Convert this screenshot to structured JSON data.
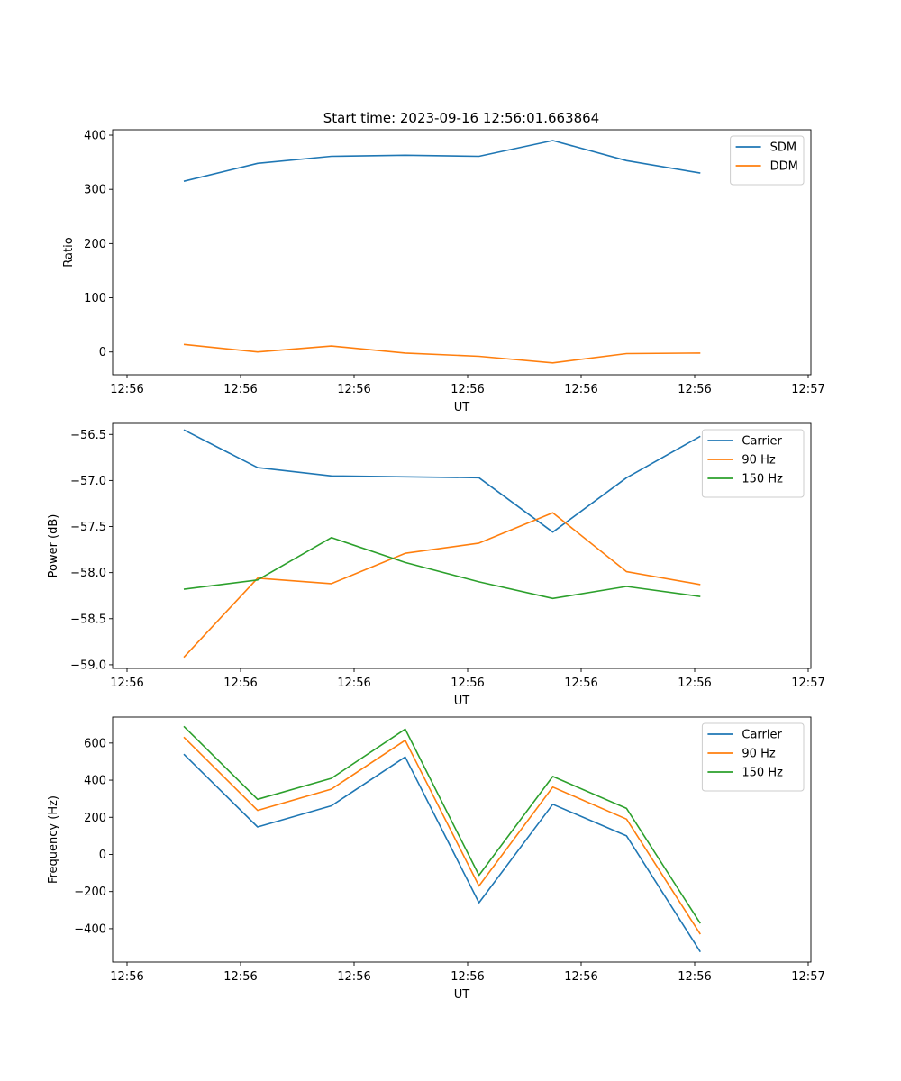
{
  "figure": {
    "title": "Start time: 2023-09-16 12:56:01.663864"
  },
  "chart_data": [
    {
      "type": "line",
      "xlabel": "UT",
      "ylabel": "Ratio",
      "x_tick_labels": [
        "12:56",
        "12:56",
        "12:56",
        "12:56",
        "12:56",
        "12:56",
        "12:57"
      ],
      "xlim": [
        0,
        12
      ],
      "x": [
        1,
        2.3,
        3.6,
        4.9,
        6.2,
        7.5,
        8.8,
        10.1
      ],
      "ylim": [
        -42,
        410
      ],
      "y_ticks": [
        0,
        100,
        200,
        300,
        400
      ],
      "y_tick_labels": [
        "0",
        "100",
        "200",
        "300",
        "400"
      ],
      "legend": "top-right",
      "grid": false,
      "series": [
        {
          "name": "SDM",
          "color": "#1f77b4",
          "values": [
            315,
            348,
            361,
            363,
            361,
            390,
            353,
            330
          ]
        },
        {
          "name": "DDM",
          "color": "#ff7f0e",
          "values": [
            14,
            0,
            11,
            -2,
            -8,
            -20,
            -3,
            -2
          ]
        }
      ]
    },
    {
      "type": "line",
      "xlabel": "UT",
      "ylabel": "Power (dB)",
      "x_tick_labels": [
        "12:56",
        "12:56",
        "12:56",
        "12:56",
        "12:56",
        "12:56",
        "12:57"
      ],
      "xlim": [
        0,
        12
      ],
      "x": [
        1,
        2.3,
        3.6,
        4.9,
        6.2,
        7.5,
        8.8,
        10.1
      ],
      "ylim": [
        -59.04,
        -56.38
      ],
      "y_ticks": [
        -59.0,
        -58.5,
        -58.0,
        -57.5,
        -57.0,
        -56.5
      ],
      "y_tick_labels": [
        "−59.0",
        "−58.5",
        "−58.0",
        "−57.5",
        "−57.0",
        "−56.5"
      ],
      "legend": "top-right",
      "grid": false,
      "series": [
        {
          "name": "Carrier",
          "color": "#1f77b4",
          "values": [
            -56.45,
            -56.86,
            -56.95,
            -56.96,
            -56.97,
            -57.56,
            -56.97,
            -56.52
          ]
        },
        {
          "name": "90 Hz",
          "color": "#ff7f0e",
          "values": [
            -58.92,
            -58.06,
            -58.12,
            -57.79,
            -57.68,
            -57.35,
            -57.99,
            -58.13
          ]
        },
        {
          "name": "150 Hz",
          "color": "#2ca02c",
          "values": [
            -58.18,
            -58.08,
            -57.62,
            -57.89,
            -58.1,
            -58.28,
            -58.15,
            -58.26
          ]
        }
      ]
    },
    {
      "type": "line",
      "xlabel": "UT",
      "ylabel": "Frequency (Hz)",
      "x_tick_labels": [
        "12:56",
        "12:56",
        "12:56",
        "12:56",
        "12:56",
        "12:56",
        "12:57"
      ],
      "xlim": [
        0,
        12
      ],
      "x": [
        1,
        2.3,
        3.6,
        4.9,
        6.2,
        7.5,
        8.8,
        10.1
      ],
      "ylim": [
        -580,
        740
      ],
      "y_ticks": [
        -400,
        -200,
        0,
        200,
        400,
        600
      ],
      "y_tick_labels": [
        "−400",
        "−200",
        "0",
        "200",
        "400",
        "600"
      ],
      "legend": "top-right",
      "grid": false,
      "series": [
        {
          "name": "Carrier",
          "color": "#1f77b4",
          "values": [
            540,
            148,
            262,
            525,
            -260,
            270,
            100,
            -525
          ]
        },
        {
          "name": "90 Hz",
          "color": "#ff7f0e",
          "values": [
            632,
            237,
            352,
            615,
            -170,
            363,
            190,
            -430
          ]
        },
        {
          "name": "150 Hz",
          "color": "#2ca02c",
          "values": [
            690,
            297,
            410,
            675,
            -112,
            420,
            248,
            -372
          ]
        }
      ]
    }
  ]
}
